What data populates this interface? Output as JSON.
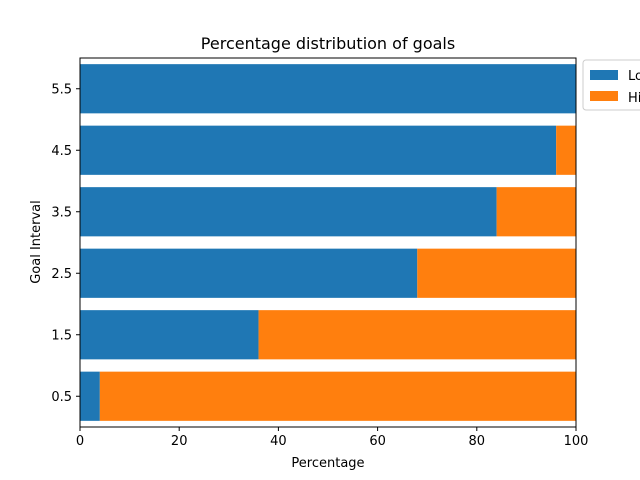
{
  "chart_data": {
    "type": "bar",
    "orientation": "horizontal",
    "stacked": true,
    "title": "Percentage distribution of goals",
    "xlabel": "Percentage",
    "ylabel": "Goal Interval",
    "xlim": [
      0,
      100
    ],
    "x_ticks": [
      0,
      20,
      40,
      60,
      80,
      100
    ],
    "categories": [
      "0.5",
      "1.5",
      "2.5",
      "3.5",
      "4.5",
      "5.5"
    ],
    "series": [
      {
        "name": "Lo",
        "color": "#1f77b4",
        "values": [
          4,
          36,
          68,
          84,
          96,
          100
        ]
      },
      {
        "name": "Hi",
        "color": "#ff7f0e",
        "values": [
          96,
          64,
          32,
          16,
          4,
          0
        ]
      }
    ],
    "legend_position": "top-right",
    "grid": false
  }
}
